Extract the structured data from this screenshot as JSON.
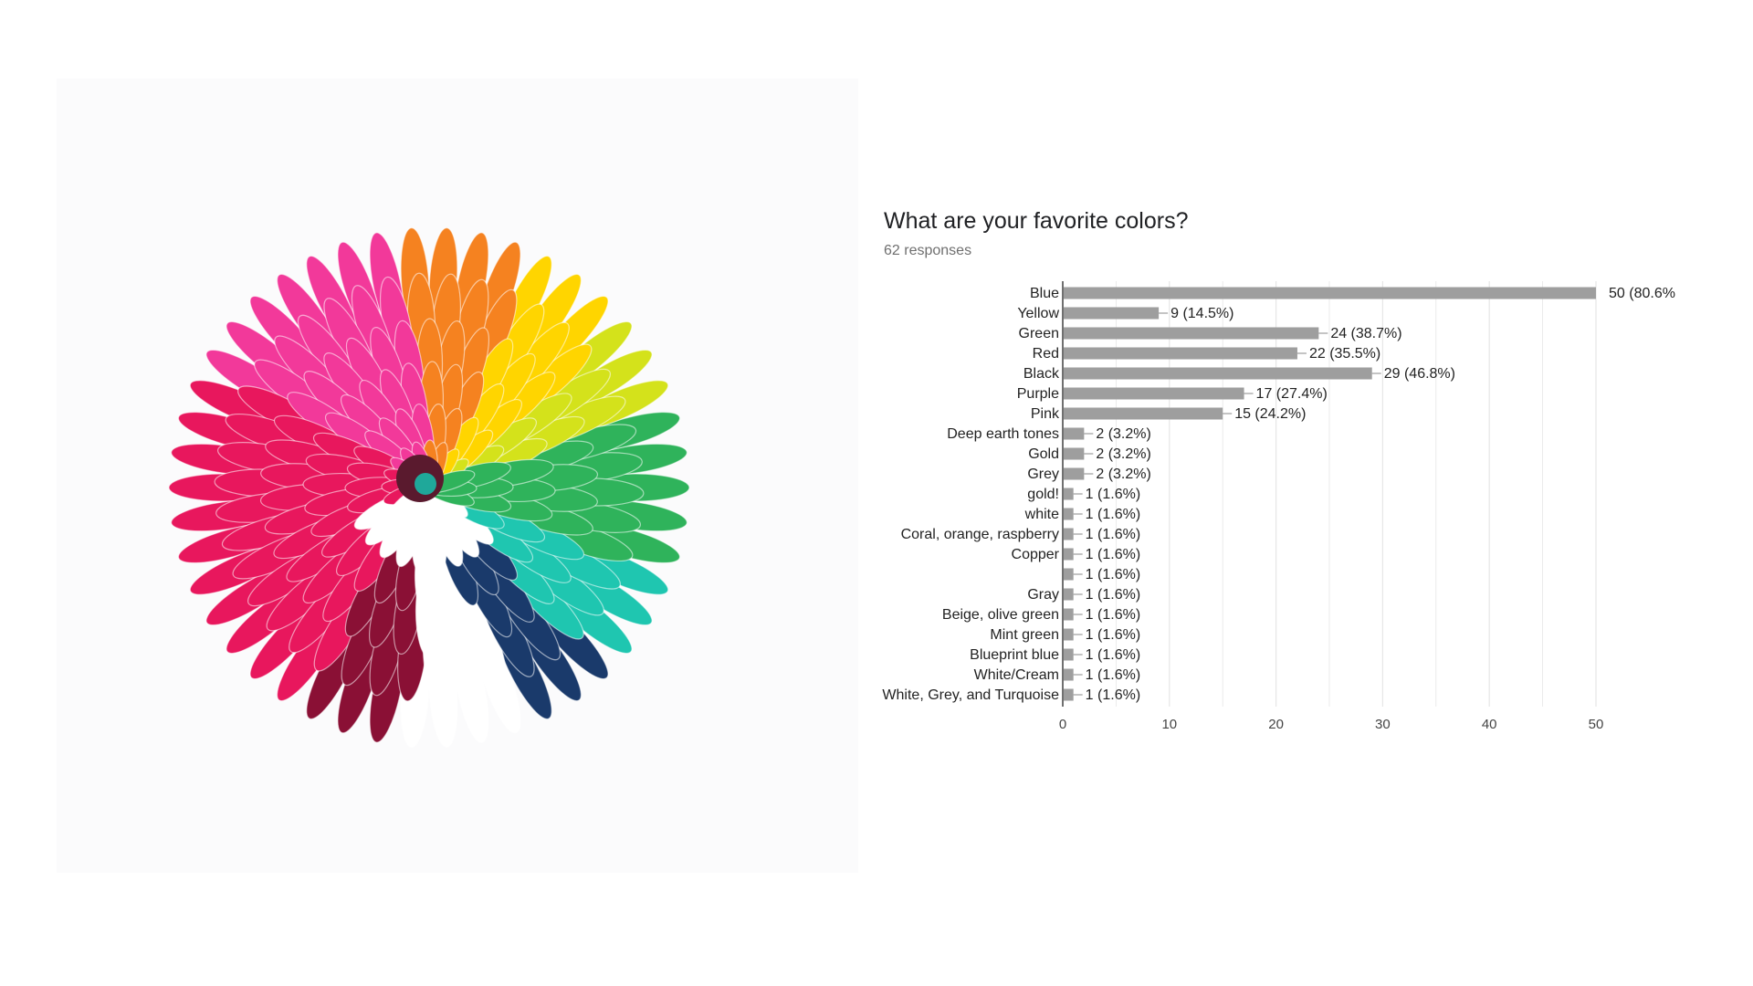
{
  "photo": {
    "subject": "flower-icon",
    "petal_colors": [
      "#e8175d",
      "#f2399a",
      "#f58220",
      "#ffd500",
      "#d4e21b",
      "#2fb35b",
      "#1fc6b0",
      "#ffffff",
      "#8a1035",
      "#1a3a6b"
    ]
  },
  "chart_data": {
    "type": "bar",
    "orientation": "horizontal",
    "title": "What are your favorite colors?",
    "subtitle": "62 responses",
    "categories": [
      "Blue",
      "Yellow",
      "Green",
      "Red",
      "Black",
      "Purple",
      "Pink",
      "Deep earth tones",
      "Gold",
      "Grey",
      "gold!",
      "white",
      "Coral, orange, raspberry",
      "Copper",
      "",
      "Gray",
      "Beige, olive green",
      "Mint green",
      "Blueprint blue",
      "White/Cream",
      "White, Grey, and Turquoise"
    ],
    "values": [
      50,
      9,
      24,
      22,
      29,
      17,
      15,
      2,
      2,
      2,
      1,
      1,
      1,
      1,
      1,
      1,
      1,
      1,
      1,
      1,
      1
    ],
    "value_labels": [
      "50 (80.6%",
      "9 (14.5%)",
      "24 (38.7%)",
      "22 (35.5%)",
      "29 (46.8%)",
      "17 (27.4%)",
      "15 (24.2%)",
      "2 (3.2%)",
      "2 (3.2%)",
      "2 (3.2%)",
      "1 (1.6%)",
      "1 (1.6%)",
      "1 (1.6%)",
      "1 (1.6%)",
      "1 (1.6%)",
      "1 (1.6%)",
      "1 (1.6%)",
      "1 (1.6%)",
      "1 (1.6%)",
      "1 (1.6%)",
      "1 (1.6%)"
    ],
    "xticks": [
      0,
      10,
      20,
      30,
      40,
      50
    ],
    "xlim": [
      0,
      50
    ],
    "grid": true,
    "bar_color": "#9e9e9e",
    "grid_color": "#e6e6e6"
  }
}
